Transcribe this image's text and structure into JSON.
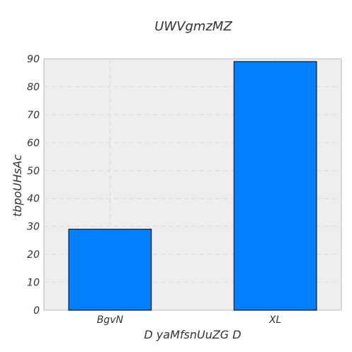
{
  "chart_data": {
    "type": "bar",
    "title": "UWVgmzMZ",
    "xlabel": "D yaMfsnUuZG D",
    "ylabel": "tbpoUHsAc",
    "categories": [
      "BgvN",
      "XL"
    ],
    "values": [
      29,
      89
    ],
    "ylim": [
      0,
      90
    ],
    "yticks": [
      0,
      10,
      20,
      30,
      40,
      50,
      60,
      70,
      80,
      90
    ],
    "grid": true,
    "bar_color": "#0080ff",
    "bar_edge_color": "#000000",
    "plot_background": "#eeeeee",
    "grid_color": "#d9d9d9"
  }
}
